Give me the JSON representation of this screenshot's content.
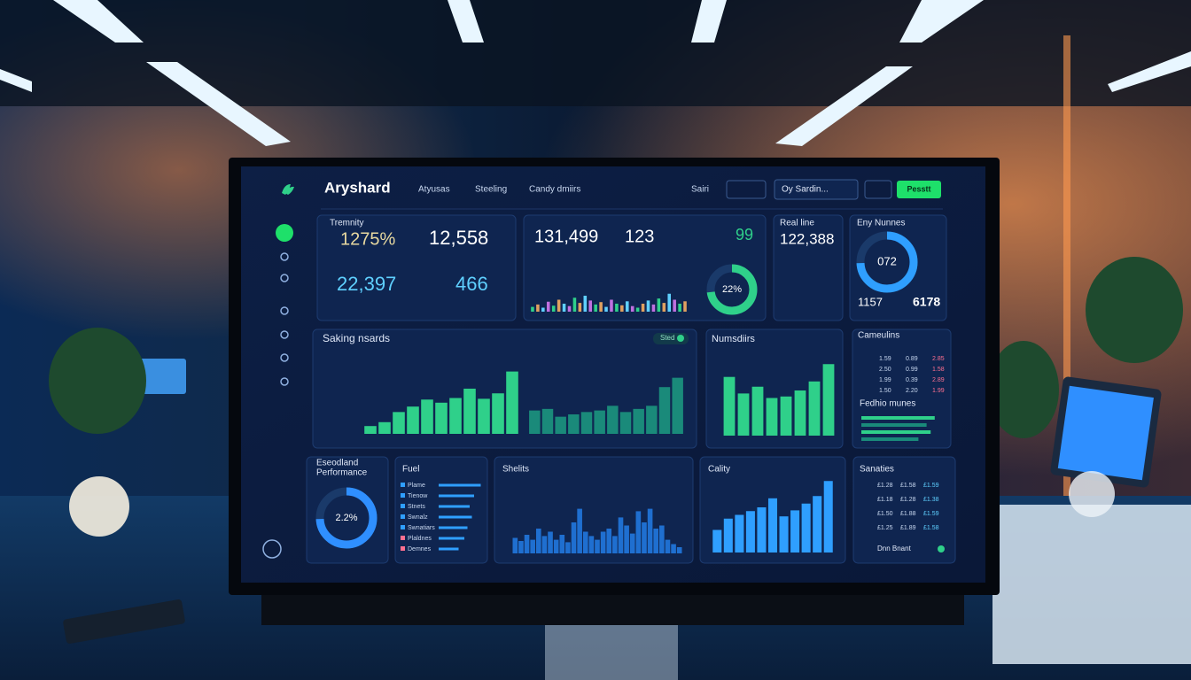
{
  "header": {
    "brand": "Aryshard",
    "nav": [
      "Atyusas",
      "Steeling",
      "Candy dmiirs"
    ],
    "user": "Sairi",
    "search": "Oy Sardin...",
    "button": "Pesstt"
  },
  "overview": {
    "title": "Tremnity",
    "metrics": [
      "1275%",
      "12,558",
      "22,397",
      "466"
    ]
  },
  "sales": {
    "metrics": [
      "131,499",
      "123",
      "99"
    ],
    "trend": [
      12,
      18,
      10,
      25,
      15,
      30,
      20,
      14,
      35,
      22,
      40,
      28,
      18,
      24,
      12,
      30,
      20,
      16,
      26,
      14,
      10,
      20,
      28,
      18,
      33,
      22,
      45,
      30,
      20,
      26
    ],
    "donut": "22%"
  },
  "realtime": {
    "title": "Real line",
    "value": "122,388"
  },
  "eny": {
    "title": "Eny Nunnes",
    "donut": "072",
    "metrics": [
      "1157",
      "6178"
    ]
  },
  "saking": {
    "title": "Saking nsards",
    "toggle": "Sted",
    "green": [
      10,
      15,
      28,
      35,
      44,
      40,
      46,
      58,
      45,
      52,
      80
    ],
    "teal": [
      30,
      32,
      22,
      25,
      28,
      30,
      36,
      28,
      32,
      36,
      60,
      72
    ]
  },
  "numsdiirs": {
    "title": "Numsdiirs",
    "values": [
      78,
      56,
      65,
      50,
      52,
      60,
      72,
      95
    ]
  },
  "cameulins": {
    "title": "Cameulins",
    "rows": [
      [
        "1.59",
        "0.89",
        "2.85"
      ],
      [
        "2.50",
        "0.99",
        "1.58"
      ],
      [
        "1.99",
        "0.39",
        "2.89"
      ],
      [
        "1.50",
        "2.20",
        "1.99"
      ]
    ],
    "subtitle": "Fedhio munes",
    "bars": [
      90,
      80,
      85,
      70
    ]
  },
  "performance": {
    "title": [
      "Eseodland",
      "Performance"
    ],
    "donut": "2.2%"
  },
  "fuel": {
    "title": "Fuel",
    "items": [
      "Plame",
      "Tienow",
      "Stnets",
      "Swnalz",
      "Swnatiars",
      "Plaldnes",
      "Demnes"
    ],
    "values": [
      95,
      80,
      70,
      75,
      65,
      58,
      45
    ]
  },
  "shelits": {
    "title": "Shelits",
    "values": [
      25,
      20,
      30,
      22,
      40,
      28,
      35,
      22,
      30,
      18,
      50,
      72,
      35,
      28,
      22,
      35,
      40,
      28,
      58,
      45,
      32,
      68,
      50,
      72,
      40,
      45,
      22,
      15,
      10
    ]
  },
  "cality": {
    "title": "Cality",
    "values": [
      30,
      45,
      50,
      55,
      60,
      72,
      48,
      56,
      65,
      75,
      95
    ]
  },
  "sanaties": {
    "title": "Sanaties",
    "rows": [
      [
        "£1.28",
        "£1.58",
        "£1.59"
      ],
      [
        "£1.18",
        "£1.28",
        "£1.38"
      ],
      [
        "£1.50",
        "£1.88",
        "£1.59"
      ],
      [
        "£1.25",
        "£1.89",
        "£1.58"
      ]
    ],
    "footer": "Dnn Bnant"
  }
}
